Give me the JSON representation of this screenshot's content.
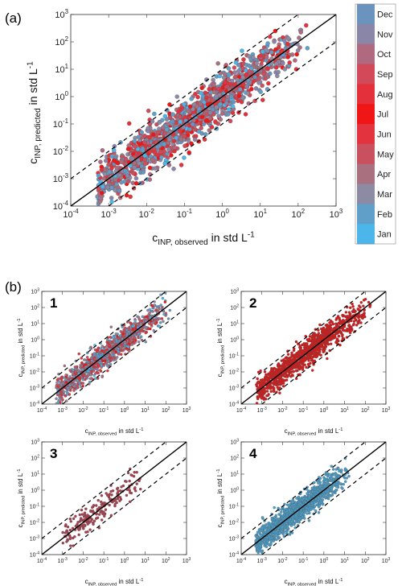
{
  "panels": {
    "a": "(a)",
    "b": "(b)",
    "sub": [
      "1",
      "2",
      "3",
      "4"
    ]
  },
  "colorbar": {
    "months": [
      "Dec",
      "Nov",
      "Oct",
      "Sep",
      "Aug",
      "Jul",
      "Jun",
      "May",
      "Apr",
      "Mar",
      "Feb",
      "Jan"
    ],
    "colors": [
      "#6a93bd",
      "#8a86a8",
      "#b06a80",
      "#d24a5a",
      "#e3303b",
      "#f01616",
      "#e2333e",
      "#c8505f",
      "#a9717f",
      "#8d8aa3",
      "#5f9fc8",
      "#4cb6ea"
    ]
  },
  "axis_labels": {
    "x_main": "c",
    "x_sub": "INP, observed",
    "x_unit": " in std L",
    "x_sup": "-1",
    "y_main": "c",
    "y_sub": "INP, predicted",
    "y_unit": " in std L",
    "y_sup": "-1"
  },
  "chart_data": [
    {
      "panel": "(a)",
      "type": "scatter",
      "xscale": "log",
      "yscale": "log",
      "xlim": [
        0.0001,
        1000
      ],
      "ylim": [
        0.0001,
        1000
      ],
      "x_ticks": [
        "10^-4",
        "10^-3",
        "10^-2",
        "10^-1",
        "10^0",
        "10^1",
        "10^2",
        "10^3"
      ],
      "y_ticks": [
        "10^-4",
        "10^-3",
        "10^-2",
        "10^-1",
        "10^0",
        "10^1",
        "10^2",
        "10^3"
      ],
      "reference_lines": {
        "one_to_one": [
          [
            0.0001,
            0.0001
          ],
          [
            1000,
            1000
          ]
        ],
        "factor_10_bounds": true
      },
      "color_encoding": "month (Jan–Dec)",
      "point_cloud": {
        "x_range": [
          0.0005,
          300
        ],
        "center_line": "y = x",
        "approx_points": 1500
      },
      "series": [
        {
          "colors": "all months"
        }
      ]
    },
    {
      "panel": "1",
      "type": "scatter",
      "xscale": "log",
      "yscale": "log",
      "xlim": [
        0.0001,
        1000
      ],
      "ylim": [
        0.0001,
        1000
      ],
      "series": [
        {
          "colors": "all months"
        }
      ],
      "point_cloud": {
        "x_range": [
          0.0005,
          200
        ],
        "approx_points": 1200
      }
    },
    {
      "panel": "2",
      "type": "scatter",
      "xscale": "log",
      "yscale": "log",
      "xlim": [
        0.0001,
        1000
      ],
      "ylim": [
        0.0001,
        1000
      ],
      "series": [
        {
          "color": "#d81818"
        }
      ],
      "point_cloud": {
        "x_range": [
          0.0005,
          300
        ],
        "approx_points": 1100
      }
    },
    {
      "panel": "3",
      "type": "scatter",
      "xscale": "log",
      "yscale": "log",
      "xlim": [
        0.0001,
        1000
      ],
      "ylim": [
        0.0001,
        1000
      ],
      "series": [
        {
          "color": "#a8404e"
        }
      ],
      "point_cloud": {
        "x_range": [
          0.001,
          10
        ],
        "approx_points": 200
      }
    },
    {
      "panel": "4",
      "type": "scatter",
      "xscale": "log",
      "yscale": "log",
      "xlim": [
        0.0001,
        1000
      ],
      "ylim": [
        0.0001,
        1000
      ],
      "series": [
        {
          "color": "#4a9dc8"
        }
      ],
      "point_cloud": {
        "x_range": [
          0.0005,
          20
        ],
        "approx_points": 1200
      }
    }
  ]
}
